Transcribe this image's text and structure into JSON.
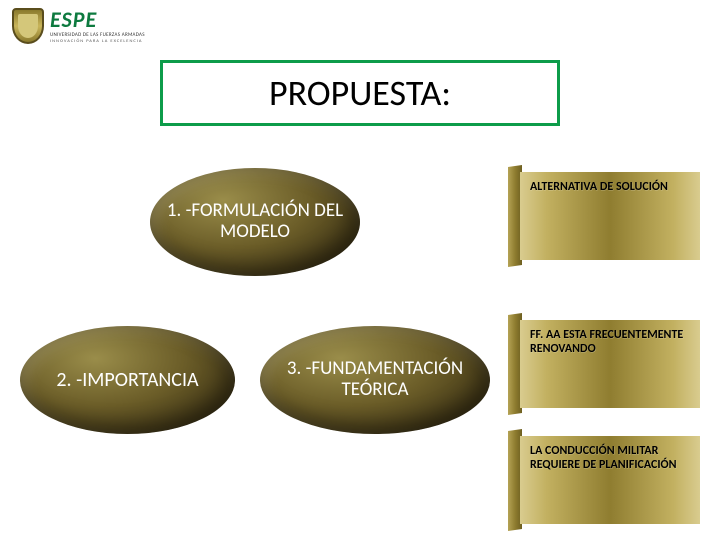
{
  "logo": {
    "name": "ESPE",
    "subtitle": "UNIVERSIDAD DE LAS FUERZAS ARMADAS",
    "tagline": "INNOVACIÓN PARA LA EXCELENCIA"
  },
  "title": "PROPUESTA:",
  "ovals": [
    {
      "label": "1. -FORMULACIÓN DEL MODELO"
    },
    {
      "label": "2. -IMPORTANCIA"
    },
    {
      "label": "3. -FUNDAMENTACIÓN TEÓRICA"
    }
  ],
  "goldBoxes": [
    {
      "text": "ALTERNATIVA DE SOLUCIÓN"
    },
    {
      "text": "FF. AA ESTA FRECUENTEMENTE RENOVANDO"
    },
    {
      "text": "LA CONDUCCIÓN MILITAR REQUIERE DE PLANIFICACIÓN"
    }
  ],
  "colors": {
    "titleBorder": "#0d9c4a",
    "espeGreen": "#0d7a3f",
    "background": "#ffffff"
  },
  "diagram": {
    "type": "infographic",
    "ovalStyle": {
      "fill_gradient": [
        "#9a8d4a",
        "#6b5d28",
        "#3d3315",
        "#1a1508"
      ],
      "text_color": "#ffffff",
      "fontsize": 19
    },
    "goldBoxStyle": {
      "fill_gradient": [
        "#d9cc8f",
        "#c2b060",
        "#8f7d30",
        "#c2b060",
        "#d9cc8f"
      ],
      "text_color": "#000000",
      "fontsize": 12,
      "font_weight": "bold"
    },
    "title_fontsize": 36
  }
}
